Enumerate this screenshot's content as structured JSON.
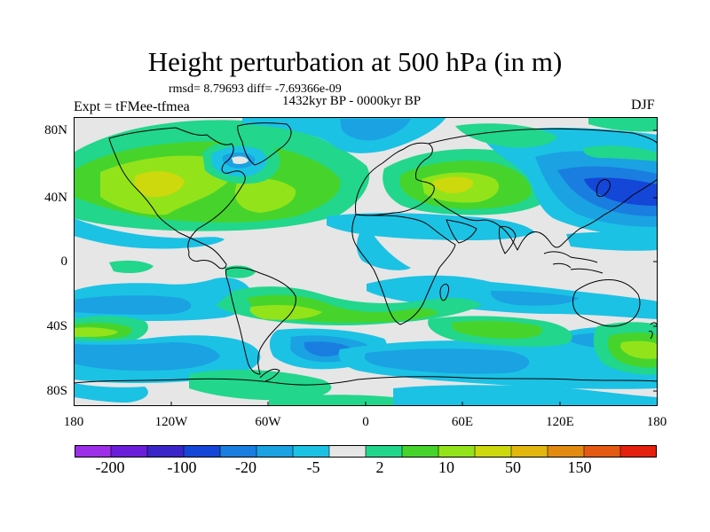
{
  "title": "Height perturbation at 500 hPa (in m)",
  "stats": "rmsd= 8.79693 diff= -7.69366e-09",
  "period": "1432kyr BP - 0000kyr BP",
  "experiment": "Expt = tFMee-tfmea",
  "season": "DJF",
  "lat_labels": [
    "80N",
    "40N",
    "0",
    "40S",
    "80S"
  ],
  "lon_labels": [
    "180",
    "120W",
    "60W",
    "0",
    "60E",
    "120E",
    "180"
  ],
  "colorbar": {
    "colors": [
      "#9d2fe8",
      "#6a1ed9",
      "#3a25c8",
      "#1446d8",
      "#1a7ee0",
      "#1aa2e2",
      "#1bc2e4",
      "#e6e6e6",
      "#22d68c",
      "#46d42c",
      "#93e31a",
      "#cdd90d",
      "#e2b70e",
      "#e38b10",
      "#e55a12",
      "#e6200e"
    ],
    "labels": [
      "-200",
      "-100",
      "-20",
      "-5",
      "2",
      "10",
      "50",
      "150"
    ]
  },
  "map_colors": {
    "ocean": "#e6e6e6",
    "pos_1": "#22d68c",
    "pos_2": "#46d42c",
    "pos_3": "#93e31a",
    "pos_4": "#cdd90d",
    "pos_5": "#e2b70e",
    "neg_1": "#1bc2e4",
    "neg_2": "#1aa2e2",
    "neg_3": "#1a7ee0",
    "neg_4": "#1446d8"
  }
}
